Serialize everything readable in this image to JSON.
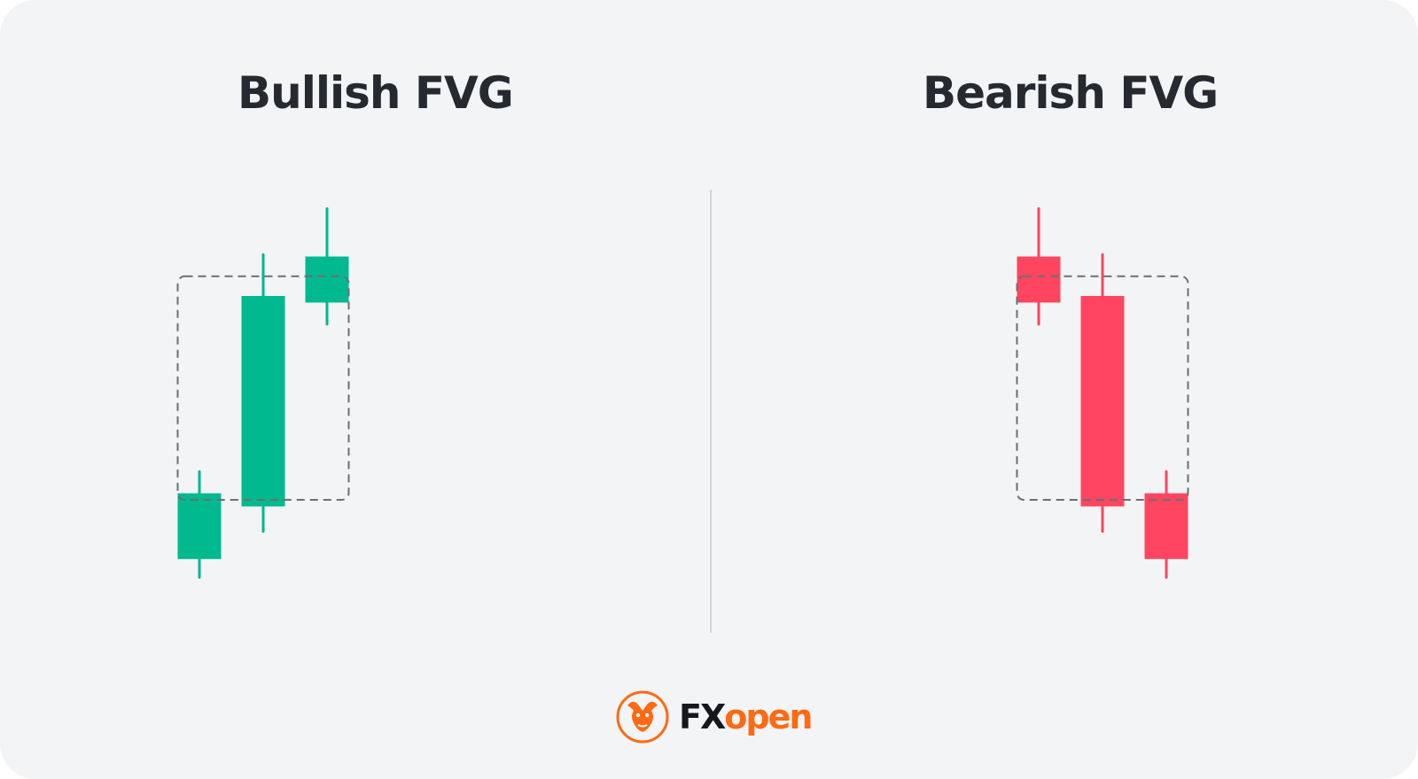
{
  "panels": [
    {
      "id": "bullish",
      "title": "Bullish FVG",
      "color": "#00b98e",
      "candles": [
        {
          "open": 2.0,
          "close": 4.0,
          "low": 1.4,
          "high": 4.7
        },
        {
          "open": 3.6,
          "close": 10.0,
          "low": 2.8,
          "high": 11.3
        },
        {
          "open": 9.8,
          "close": 11.2,
          "low": 9.1,
          "high": 12.7
        }
      ],
      "gap_zone": {
        "from_candle": 0,
        "to_candle": 2,
        "low": 3.8,
        "high": 10.6
      }
    },
    {
      "id": "bearish",
      "title": "Bearish FVG",
      "color": "#ff4560",
      "candles": [
        {
          "open": 11.2,
          "close": 9.8,
          "low": 9.1,
          "high": 12.7
        },
        {
          "open": 10.0,
          "close": 3.6,
          "low": 2.8,
          "high": 11.3
        },
        {
          "open": 4.0,
          "close": 2.0,
          "low": 1.4,
          "high": 4.7
        }
      ],
      "gap_zone": {
        "from_candle": 0,
        "to_candle": 2,
        "low": 3.8,
        "high": 10.6
      }
    }
  ],
  "logo": {
    "part1": "FX",
    "part2": "open",
    "brand_color": "#ff6a13",
    "icon": "bull-head-icon"
  },
  "colors": {
    "background": "#f3f4f6",
    "title": "#262a30",
    "dashed_box": "#6b6f76",
    "divider": "#d4d6da"
  }
}
